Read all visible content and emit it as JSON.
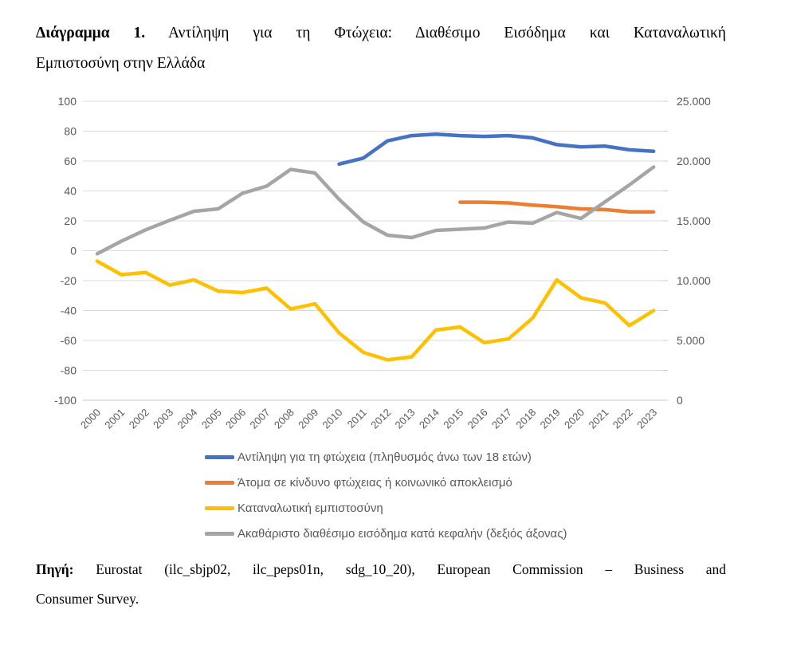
{
  "title": {
    "prefix": "Διάγραμμα 1.",
    "line1_rest": " Αντίληψη για τη Φτώχεια: Διαθέσιμο Εισόδημα και Καταναλωτική",
    "line2": "Εμπιστοσύνη στην Ελλάδα"
  },
  "source": {
    "prefix": "Πηγή:",
    "line1_rest": " Eurostat (ilc_sbjp02, ilc_peps01n, sdg_10_20), European Commission – Business and",
    "line2": "Consumer Survey."
  },
  "chart_data": {
    "type": "line",
    "title": "",
    "grid": true,
    "legend_position": "bottom-left",
    "gridline_color": "#D9D9D9",
    "axis_line_color": "#C8C8C8",
    "axis_label_color": "#595959",
    "categories": [
      "2000",
      "2001",
      "2002",
      "2003",
      "2004",
      "2005",
      "2006",
      "2007",
      "2008",
      "2009",
      "2010",
      "2011",
      "2012",
      "2013",
      "2014",
      "2015",
      "2016",
      "2017",
      "2018",
      "2019",
      "2020",
      "2021",
      "2022",
      "2023"
    ],
    "left_axis": {
      "min": -100,
      "max": 100,
      "ticks": [
        {
          "label": "100",
          "value": 100
        },
        {
          "label": "80",
          "value": 80
        },
        {
          "label": "60",
          "value": 60
        },
        {
          "label": "40",
          "value": 40
        },
        {
          "label": "20",
          "value": 20
        },
        {
          "label": "0",
          "value": 0
        },
        {
          "label": "-20",
          "value": -20
        },
        {
          "label": "-40",
          "value": -40
        },
        {
          "label": "-60",
          "value": -60
        },
        {
          "label": "-80",
          "value": -80
        },
        {
          "label": "-100",
          "value": -100
        }
      ]
    },
    "right_axis": {
      "min": 0,
      "max": 25000,
      "minor_tick_step": 2500,
      "ticks": [
        {
          "label": "25.000",
          "value": 25000
        },
        {
          "label": "20.000",
          "value": 20000
        },
        {
          "label": "15.000",
          "value": 15000
        },
        {
          "label": "10.000",
          "value": 10000
        },
        {
          "label": "5.000",
          "value": 5000
        },
        {
          "label": "0",
          "value": 0
        }
      ]
    },
    "series": [
      {
        "name": "Αντίληψη για τη φτώχεια (πληθυσμός άνω των 18 ετών)",
        "color": "#4472C4",
        "axis": "left",
        "values": [
          null,
          null,
          null,
          null,
          null,
          null,
          null,
          null,
          null,
          null,
          58,
          62,
          73.5,
          77,
          78,
          77,
          76.5,
          77,
          75.5,
          71,
          69.5,
          70,
          67.5,
          66.5
        ]
      },
      {
        "name": "Άτομα σε κίνδυνο φτώχειας ή κοινωνικό αποκλεισμό",
        "color": "#ED7D31",
        "axis": "left",
        "values": [
          null,
          null,
          null,
          null,
          null,
          null,
          null,
          null,
          null,
          null,
          null,
          null,
          null,
          null,
          null,
          32.5,
          32.5,
          32,
          30.5,
          29.5,
          28,
          27.5,
          26,
          26
        ]
      },
      {
        "name": "Καταναλωτική εμπιστοσύνη",
        "color": "#FFC000",
        "axis": "left",
        "values": [
          -7,
          -16,
          -14.5,
          -23,
          -19.5,
          -27,
          -28,
          -25,
          -39,
          -35.5,
          -55,
          -68,
          -73,
          -71,
          -53,
          -51,
          -61.5,
          -59,
          -45,
          -19.5,
          -31.5,
          -35,
          -50,
          -40
        ]
      },
      {
        "name": "Ακαθάριστο διαθέσιμο εισόδημα κατά κεφαλήν (δεξιός άξονας)",
        "color": "#A5A5A5",
        "axis": "right",
        "values": [
          12250,
          13300,
          14250,
          15050,
          15800,
          16000,
          17300,
          17900,
          19300,
          19000,
          16800,
          14900,
          13800,
          13600,
          14200,
          14300,
          14400,
          14900,
          14800,
          15700,
          15200,
          16600,
          18000,
          19500
        ]
      }
    ]
  }
}
